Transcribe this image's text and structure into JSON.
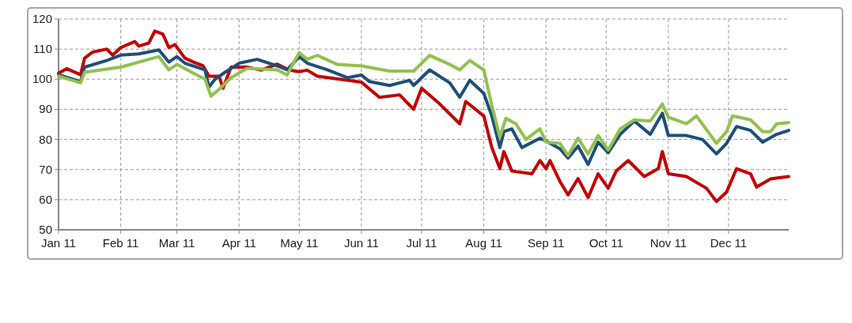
{
  "chart_data": {
    "type": "line",
    "xlim": [
      "2011-01-01",
      "2011-12-31"
    ],
    "ylim": [
      50,
      120
    ],
    "yticks": [
      50,
      60,
      70,
      80,
      90,
      100,
      110,
      120
    ],
    "xticks": [
      {
        "value": "2011-01-01",
        "label": "Jan 11"
      },
      {
        "value": "2011-02-01",
        "label": "Feb 11"
      },
      {
        "value": "2011-03-01",
        "label": "Mar 11"
      },
      {
        "value": "2011-04-01",
        "label": "Apr 11"
      },
      {
        "value": "2011-05-01",
        "label": "May 11"
      },
      {
        "value": "2011-06-01",
        "label": "Jun 11"
      },
      {
        "value": "2011-07-01",
        "label": "Jul 11"
      },
      {
        "value": "2011-08-01",
        "label": "Aug 11"
      },
      {
        "value": "2011-09-01",
        "label": "Sep 11"
      },
      {
        "value": "2011-10-01",
        "label": "Oct 11"
      },
      {
        "value": "2011-11-01",
        "label": "Nov 11"
      },
      {
        "value": "2011-12-01",
        "label": "Dec 11"
      }
    ],
    "grid": true,
    "marker": "none",
    "line_style": "solid",
    "series": [
      {
        "color": "#c00000",
        "x": [
          "2011-01-01",
          "2011-01-05",
          "2011-01-12",
          "2011-01-14",
          "2011-01-18",
          "2011-01-25",
          "2011-01-28",
          "2011-02-01",
          "2011-02-08",
          "2011-02-10",
          "2011-02-15",
          "2011-02-18",
          "2011-02-22",
          "2011-02-25",
          "2011-02-28",
          "2011-03-05",
          "2011-03-10",
          "2011-03-14",
          "2011-03-17",
          "2011-03-22",
          "2011-03-24",
          "2011-03-28",
          "2011-04-05",
          "2011-04-12",
          "2011-04-20",
          "2011-04-26",
          "2011-05-01",
          "2011-05-05",
          "2011-05-10",
          "2011-06-01",
          "2011-06-10",
          "2011-06-20",
          "2011-06-27",
          "2011-07-01",
          "2011-07-10",
          "2011-07-20",
          "2011-07-23",
          "2011-08-01",
          "2011-08-05",
          "2011-08-09",
          "2011-08-11",
          "2011-08-15",
          "2011-08-25",
          "2011-08-29",
          "2011-09-01",
          "2011-09-03",
          "2011-09-08",
          "2011-09-12",
          "2011-09-17",
          "2011-09-22",
          "2011-09-27",
          "2011-10-02",
          "2011-10-06",
          "2011-10-12",
          "2011-10-20",
          "2011-10-27",
          "2011-10-29",
          "2011-11-01",
          "2011-11-10",
          "2011-11-20",
          "2011-11-25",
          "2011-11-30",
          "2011-12-05",
          "2011-12-12",
          "2011-12-15",
          "2011-12-22",
          "2011-12-31"
        ],
        "values": [
          102,
          103.5,
          101.5,
          107,
          109,
          110,
          108,
          110.5,
          112.5,
          111,
          112,
          116,
          115,
          110.5,
          111.5,
          107,
          105.5,
          104.5,
          101,
          101,
          97,
          104,
          104,
          103,
          105,
          103,
          102.5,
          103,
          101,
          99,
          94,
          94.8,
          90,
          97,
          91.8,
          85.2,
          92.6,
          87.8,
          77.3,
          70.3,
          76,
          69.5,
          68.6,
          73,
          70.3,
          73,
          66,
          61.6,
          67,
          60.7,
          68.6,
          63.8,
          69.5,
          73,
          67.7,
          70.3,
          76,
          68.6,
          67.7,
          63.8,
          59.4,
          62.5,
          70.3,
          68.6,
          64.2,
          66.9,
          67.7
        ]
      },
      {
        "color": "#1f4e79",
        "x": [
          "2011-01-01",
          "2011-01-12",
          "2011-01-14",
          "2011-01-25",
          "2011-02-01",
          "2011-02-10",
          "2011-02-20",
          "2011-02-25",
          "2011-03-01",
          "2011-03-05",
          "2011-03-15",
          "2011-03-17",
          "2011-03-20",
          "2011-03-25",
          "2011-04-01",
          "2011-04-10",
          "2011-04-20",
          "2011-04-25",
          "2011-05-01",
          "2011-05-05",
          "2011-05-15",
          "2011-05-25",
          "2011-06-01",
          "2011-06-05",
          "2011-06-15",
          "2011-06-25",
          "2011-06-27",
          "2011-07-05",
          "2011-07-15",
          "2011-07-20",
          "2011-07-25",
          "2011-08-01",
          "2011-08-05",
          "2011-08-09",
          "2011-08-11",
          "2011-08-15",
          "2011-08-20",
          "2011-08-29",
          "2011-09-01",
          "2011-09-08",
          "2011-09-12",
          "2011-09-17",
          "2011-09-22",
          "2011-09-27",
          "2011-10-02",
          "2011-10-08",
          "2011-10-15",
          "2011-10-23",
          "2011-10-29",
          "2011-11-01",
          "2011-11-10",
          "2011-11-18",
          "2011-11-25",
          "2011-11-30",
          "2011-12-05",
          "2011-12-12",
          "2011-12-18",
          "2011-12-25",
          "2011-12-31"
        ],
        "values": [
          101.5,
          99.2,
          104,
          106.2,
          108,
          108.4,
          109.7,
          105.7,
          107.5,
          105.3,
          103.1,
          97.4,
          100,
          102.3,
          105.3,
          106.6,
          104.4,
          103.1,
          107.5,
          105.3,
          103.1,
          100.5,
          101.4,
          99.2,
          97.9,
          99.6,
          97.9,
          103.1,
          98.8,
          94,
          99.6,
          95.3,
          87.8,
          77.3,
          82.6,
          83.5,
          77.3,
          80.4,
          79.5,
          76.9,
          73.8,
          77.8,
          71.7,
          79.1,
          75.6,
          81.7,
          86.1,
          81.7,
          88.7,
          81.3,
          81.3,
          80,
          75.2,
          78.7,
          84.3,
          83,
          79.1,
          81.7,
          83
        ]
      },
      {
        "color": "#92c050",
        "x": [
          "2011-01-01",
          "2011-01-12",
          "2011-01-14",
          "2011-02-01",
          "2011-02-20",
          "2011-02-25",
          "2011-03-01",
          "2011-03-15",
          "2011-03-18",
          "2011-03-22",
          "2011-03-28",
          "2011-04-05",
          "2011-04-20",
          "2011-04-25",
          "2011-04-28",
          "2011-05-01",
          "2011-05-05",
          "2011-05-10",
          "2011-05-20",
          "2011-06-01",
          "2011-06-15",
          "2011-06-27",
          "2011-07-05",
          "2011-07-15",
          "2011-07-20",
          "2011-07-25",
          "2011-08-01",
          "2011-08-05",
          "2011-08-09",
          "2011-08-12",
          "2011-08-17",
          "2011-08-22",
          "2011-08-29",
          "2011-09-01",
          "2011-09-08",
          "2011-09-12",
          "2011-09-17",
          "2011-09-22",
          "2011-09-27",
          "2011-10-02",
          "2011-10-08",
          "2011-10-15",
          "2011-10-23",
          "2011-10-29",
          "2011-11-01",
          "2011-11-10",
          "2011-11-15",
          "2011-11-25",
          "2011-11-30",
          "2011-12-03",
          "2011-12-12",
          "2011-12-18",
          "2011-12-22",
          "2011-12-25",
          "2011-12-31"
        ],
        "values": [
          101,
          98.8,
          102.3,
          104,
          107.5,
          103.1,
          104.9,
          100,
          94.4,
          96.6,
          100.5,
          103.6,
          103.1,
          101.4,
          105.3,
          108.8,
          106.6,
          107.9,
          104.9,
          104.4,
          102.7,
          102.7,
          107.9,
          104.9,
          103.1,
          106.2,
          103.1,
          91.3,
          80.8,
          87,
          85.2,
          80,
          83.5,
          79.1,
          78.7,
          74.7,
          80.4,
          75.2,
          81.3,
          76.5,
          83.5,
          86.5,
          86.1,
          91.8,
          87.4,
          85.2,
          87.8,
          78.7,
          82.6,
          87.8,
          86.5,
          82.6,
          82.6,
          85.2,
          85.6
        ]
      }
    ]
  }
}
